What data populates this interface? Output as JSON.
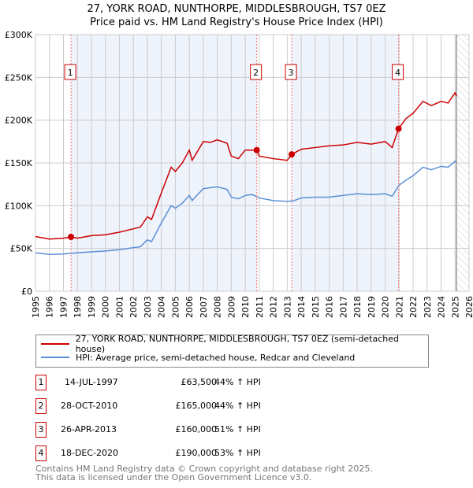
{
  "title": "27, YORK ROAD, NUNTHORPE, MIDDLESBROUGH, TS7 0EZ",
  "subtitle": "Price paid vs. HM Land Registry's House Price Index (HPI)",
  "colors": {
    "property": "#cc0000",
    "hpi": "#5b8fd6",
    "band": "#eef3fc"
  },
  "chart_data": {
    "type": "line",
    "xlim": [
      1995,
      2026
    ],
    "ylim": [
      0,
      300000
    ],
    "yticks": [
      0,
      50000,
      100000,
      150000,
      200000,
      250000,
      300000
    ],
    "ytick_labels": [
      "£0",
      "£50K",
      "£100K",
      "£150K",
      "£200K",
      "£250K",
      "£300K"
    ],
    "xticks": [
      "1995",
      "1996",
      "1997",
      "1998",
      "1999",
      "2000",
      "2001",
      "2002",
      "2003",
      "2004",
      "2005",
      "2006",
      "2007",
      "2008",
      "2009",
      "2010",
      "2011",
      "2012",
      "2013",
      "2014",
      "2015",
      "2016",
      "2017",
      "2018",
      "2019",
      "2020",
      "2021",
      "2022",
      "2023",
      "2024",
      "2025",
      "2026"
    ],
    "grid": true,
    "data_end": 2025.1,
    "series": [
      {
        "name": "27, YORK ROAD, NUNTHORPE, MIDDLESBROUGH, TS7 0EZ (semi-detached house)",
        "color": "#cc0000",
        "x": [
          1995,
          1996,
          1997,
          1997.54,
          1998,
          1999,
          2000,
          2001,
          2002,
          2002.5,
          2003,
          2003.3,
          2004,
          2004.7,
          2005,
          2005.5,
          2006,
          2006.2,
          2007,
          2007.5,
          2008,
          2008.7,
          2009,
          2009.5,
          2010,
          2010.5,
          2010.82,
          2011,
          2012,
          2013,
          2013.32,
          2014,
          2015,
          2016,
          2017,
          2018,
          2019,
          2020,
          2020.5,
          2020.96,
          2021.5,
          2022,
          2022.7,
          2023.3,
          2024,
          2024.5,
          2025,
          2025.1
        ],
        "y": [
          64000,
          61000,
          62000,
          63500,
          62000,
          65000,
          66000,
          69000,
          73000,
          75000,
          87000,
          84000,
          115000,
          145000,
          140000,
          150000,
          165000,
          153000,
          175000,
          174000,
          177000,
          173000,
          158000,
          155000,
          165000,
          165000,
          165000,
          158000,
          155000,
          153000,
          160000,
          166000,
          168000,
          170000,
          171000,
          174000,
          172000,
          175000,
          168000,
          190000,
          202000,
          208000,
          222000,
          217000,
          222000,
          220000,
          232000,
          228000
        ]
      },
      {
        "name": "HPI: Average price, semi-detached house, Redcar and Cleveland",
        "color": "#5b8fd6",
        "x": [
          1995,
          1996,
          1997,
          1998,
          1999,
          2000,
          2001,
          2002,
          2002.5,
          2003,
          2003.3,
          2004,
          2004.7,
          2005,
          2005.5,
          2006,
          2006.2,
          2007,
          2007.5,
          2008,
          2008.7,
          2009,
          2009.5,
          2010,
          2010.5,
          2011,
          2012,
          2013,
          2013.5,
          2014,
          2015,
          2016,
          2017,
          2018,
          2019,
          2020,
          2020.5,
          2021,
          2021.5,
          2022,
          2022.7,
          2023.3,
          2024,
          2024.5,
          2025,
          2025.1
        ],
        "y": [
          45000,
          43000,
          43500,
          45000,
          46000,
          47000,
          48500,
          51000,
          52000,
          60000,
          58000,
          80000,
          100000,
          97000,
          103000,
          112000,
          106000,
          120000,
          121000,
          122000,
          119000,
          110000,
          108000,
          112000,
          113000,
          109000,
          106000,
          105000,
          106000,
          109000,
          110000,
          110000,
          112000,
          114000,
          113000,
          114000,
          111000,
          124000,
          130000,
          135000,
          145000,
          142000,
          146000,
          145000,
          152000,
          150000
        ]
      }
    ],
    "sales": [
      {
        "label": "1",
        "x": 1997.54,
        "price": 63500
      },
      {
        "label": "2",
        "x": 2010.82,
        "price": 165000
      },
      {
        "label": "3",
        "x": 2013.32,
        "price": 160000
      },
      {
        "label": "4",
        "x": 2020.96,
        "price": 190000
      }
    ]
  },
  "legend": {
    "property": "27, YORK ROAD, NUNTHORPE, MIDDLESBROUGH, TS7 0EZ (semi-detached house)",
    "hpi": "HPI: Average price, semi-detached house, Redcar and Cleveland"
  },
  "transactions": [
    {
      "num": "1",
      "date": "14-JUL-1997",
      "price": "£63,500",
      "hpi": "44% ↑ HPI"
    },
    {
      "num": "2",
      "date": "28-OCT-2010",
      "price": "£165,000",
      "hpi": "44% ↑ HPI"
    },
    {
      "num": "3",
      "date": "26-APR-2013",
      "price": "£160,000",
      "hpi": "51% ↑ HPI"
    },
    {
      "num": "4",
      "date": "18-DEC-2020",
      "price": "£190,000",
      "hpi": "53% ↑ HPI"
    }
  ],
  "footer": {
    "line1": "Contains HM Land Registry data © Crown copyright and database right 2025.",
    "line2": "This data is licensed under the Open Government Licence v3.0."
  }
}
